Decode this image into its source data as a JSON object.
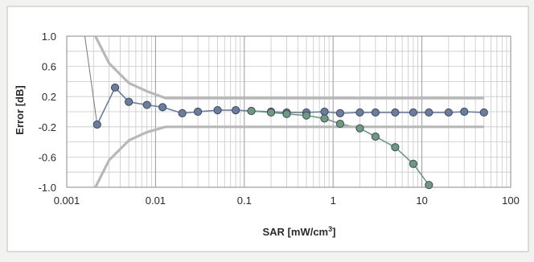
{
  "chart_data": {
    "type": "scatter",
    "title": "",
    "xlabel": "SAR [mW/cm",
    "xlabel_sup": "3",
    "xlabel_end": "]",
    "ylabel": "Error [dB]",
    "x_scale": "log",
    "xlim": [
      0.001,
      100
    ],
    "ylim": [
      -1.0,
      1.0
    ],
    "x_ticks": [
      0.001,
      0.01,
      0.1,
      1,
      10,
      100
    ],
    "x_tick_labels": [
      "0.001",
      "0.01",
      "0.1",
      "1",
      "10",
      "100"
    ],
    "y_ticks": [
      1.0,
      0.6,
      0.2,
      -0.2,
      -0.6,
      -1.0
    ],
    "y_tick_labels": [
      "1.0",
      "0.6",
      "0.2",
      "-0.2",
      "-0.6",
      "-1.0"
    ],
    "grid": true,
    "legend": "none",
    "series": [
      {
        "color": "#6b7d9e",
        "markers": true,
        "x": [
          0.0022,
          0.0035,
          0.005,
          0.008,
          0.012,
          0.02,
          0.03,
          0.05,
          0.08,
          0.12,
          0.2,
          0.3,
          0.5,
          0.8,
          1.2,
          2,
          3,
          5,
          8,
          12,
          20,
          30,
          50
        ],
        "y": [
          -0.17,
          0.32,
          0.13,
          0.09,
          0.06,
          -0.02,
          0.0,
          0.02,
          0.02,
          0.01,
          0.0,
          -0.01,
          -0.01,
          0.0,
          -0.02,
          -0.01,
          -0.01,
          -0.01,
          -0.01,
          -0.01,
          -0.01,
          0.0,
          -0.01
        ]
      },
      {
        "color": "#6f9a80",
        "markers": true,
        "x": [
          0.12,
          0.2,
          0.3,
          0.5,
          0.8,
          1.2,
          2,
          3,
          5,
          8,
          12
        ],
        "y": [
          0.01,
          -0.01,
          -0.03,
          -0.05,
          -0.09,
          -0.16,
          -0.22,
          -0.33,
          -0.47,
          -0.69,
          -0.97
        ]
      },
      {
        "color": "#b8b8b8",
        "markers": false,
        "x": [
          0.0021,
          0.003,
          0.005,
          0.008,
          0.013,
          0.02,
          0.1,
          1,
          10,
          50
        ],
        "y": [
          1.0,
          0.64,
          0.38,
          0.27,
          0.18,
          0.18,
          0.18,
          0.18,
          0.18,
          0.18
        ]
      },
      {
        "color": "#b8b8b8",
        "markers": false,
        "x": [
          0.0021,
          0.003,
          0.005,
          0.008,
          0.013,
          0.02,
          0.1,
          1,
          10,
          50
        ],
        "y": [
          -1.0,
          -0.64,
          -0.38,
          -0.27,
          -0.2,
          -0.2,
          -0.2,
          -0.2,
          -0.2,
          -0.2
        ]
      },
      {
        "color": "#777777",
        "markers": false,
        "x": [
          0.0016,
          0.0022
        ],
        "y": [
          1.0,
          -0.17
        ]
      }
    ]
  }
}
